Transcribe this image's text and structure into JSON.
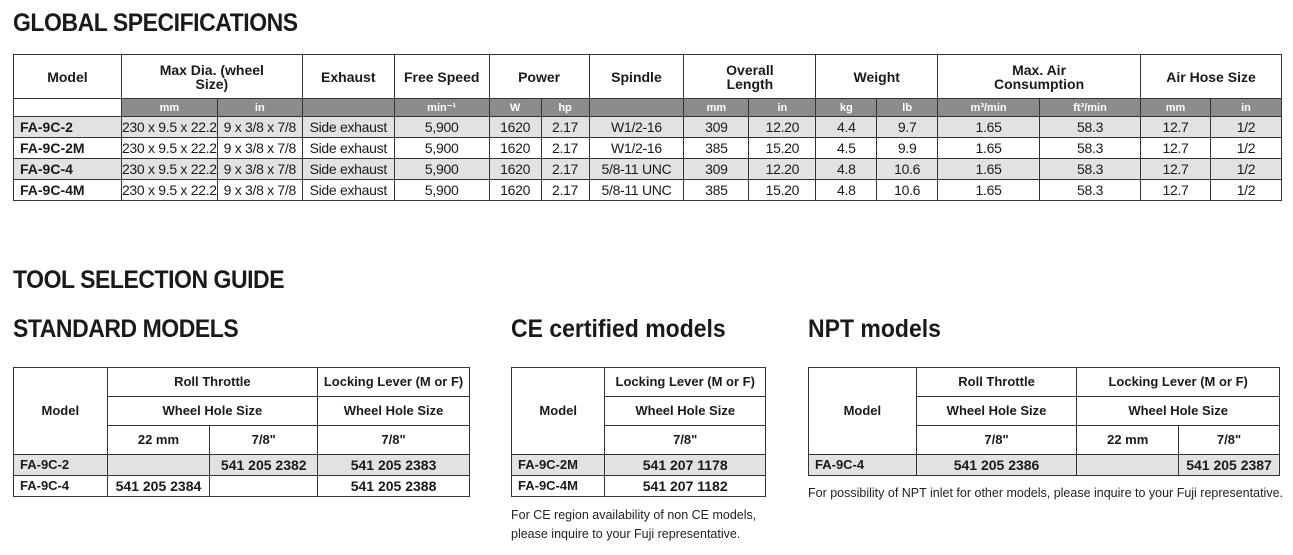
{
  "global": {
    "title": "GLOBAL SPECIFICATIONS",
    "headers": {
      "model": "Model",
      "max_dia": "Max Dia. (wheel Size)",
      "exhaust": "Exhaust",
      "free_speed": "Free Speed",
      "power": "Power",
      "spindle": "Spindle",
      "overall_length": "Overall Length",
      "weight": "Weight",
      "max_air": "Max. Air Consumption",
      "air_hose": "Air Hose Size"
    },
    "units": [
      "mm",
      "in",
      "",
      "min⁻¹",
      "W",
      "hp",
      "",
      "mm",
      "in",
      "kg",
      "lb",
      "m³/min",
      "ft³/min",
      "mm",
      "in"
    ],
    "rows": [
      [
        "FA-9C-2",
        "230 x 9.5 x 22.2",
        "9 x 3/8 x 7/8",
        "Side exhaust",
        "5,900",
        "1620",
        "2.17",
        "W1/2-16",
        "309",
        "12.20",
        "4.4",
        "9.7",
        "1.65",
        "58.3",
        "12.7",
        "1/2"
      ],
      [
        "FA-9C-2M",
        "230 x 9.5 x 22.2",
        "9 x 3/8 x 7/8",
        "Side exhaust",
        "5,900",
        "1620",
        "2.17",
        "W1/2-16",
        "385",
        "15.20",
        "4.5",
        "9.9",
        "1.65",
        "58.3",
        "12.7",
        "1/2"
      ],
      [
        "FA-9C-4",
        "230 x 9.5 x 22.2",
        "9 x 3/8 x 7/8",
        "Side exhaust",
        "5,900",
        "1620",
        "2.17",
        "5/8-11 UNC",
        "309",
        "12.20",
        "4.8",
        "10.6",
        "1.65",
        "58.3",
        "12.7",
        "1/2"
      ],
      [
        "FA-9C-4M",
        "230 x 9.5 x 22.2",
        "9 x 3/8 x 7/8",
        "Side exhaust",
        "5,900",
        "1620",
        "2.17",
        "5/8-11 UNC",
        "385",
        "15.20",
        "4.8",
        "10.6",
        "1.65",
        "58.3",
        "12.7",
        "1/2"
      ]
    ]
  },
  "guide_title": "TOOL SELECTION GUIDE",
  "standard": {
    "title": "STANDARD MODELS",
    "model": "Model",
    "roll_throttle": "Roll Throttle",
    "locking_lever": "Locking Lever (M or F)",
    "wheel_hole_size": "Wheel Hole Size",
    "size_22": "22 mm",
    "size_78": "7/8\"",
    "rows": [
      [
        "FA-9C-2",
        "",
        "541 205 2382",
        "541 205 2383"
      ],
      [
        "FA-9C-4",
        "541 205 2384",
        "",
        "541 205 2388"
      ]
    ]
  },
  "ce": {
    "title": "CE certified models",
    "model": "Model",
    "locking_lever": "Locking Lever (M or F)",
    "wheel_hole_size": "Wheel Hole Size",
    "size_78": "7/8\"",
    "rows": [
      [
        "FA-9C-2M",
        "541 207 1178"
      ],
      [
        "FA-9C-4M",
        "541 207 1182"
      ]
    ],
    "note_line1": "For CE region availability of non CE models,",
    "note_line2": "please inquire to your Fuji representative."
  },
  "npt": {
    "title": "NPT models",
    "model": "Model",
    "roll_throttle": "Roll Throttle",
    "locking_lever": "Locking Lever (M or F)",
    "wheel_hole_size": "Wheel Hole Size",
    "size_22": "22 mm",
    "size_78": "7/8\"",
    "rows": [
      [
        "FA-9C-4",
        "541 205 2386",
        "",
        "541 205 2387"
      ]
    ],
    "note": "For possibility of NPT inlet for other models, please inquire to your Fuji representative."
  }
}
